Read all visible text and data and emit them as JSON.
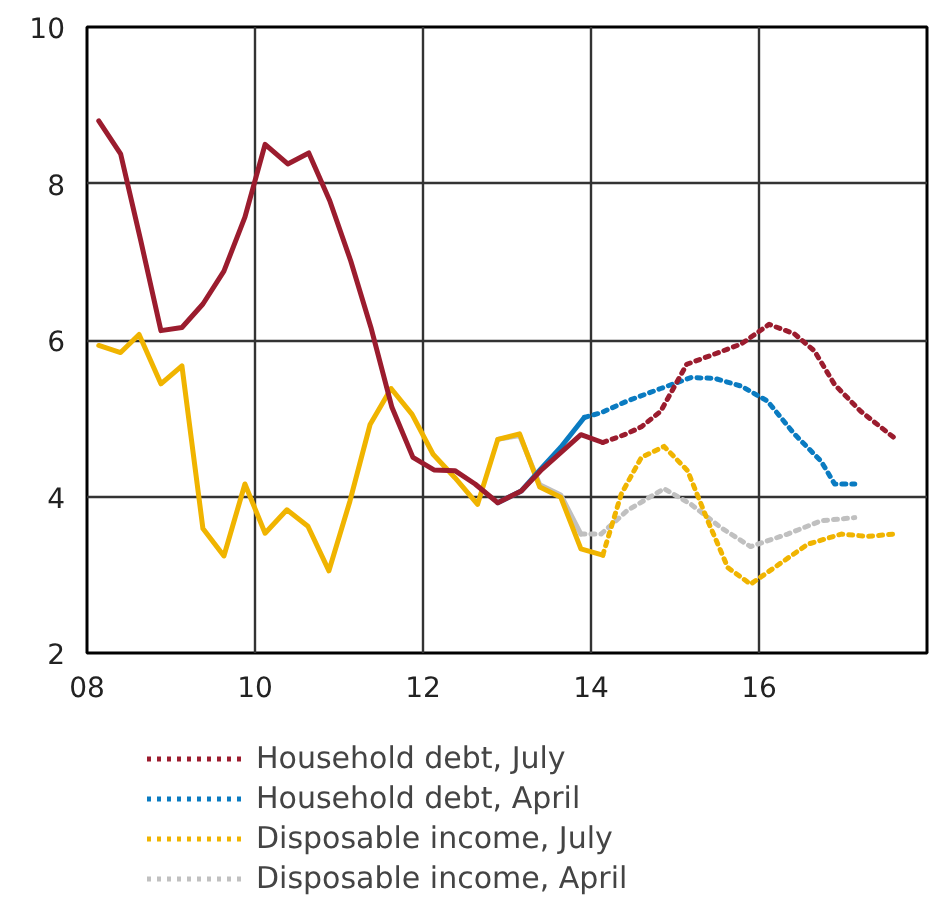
{
  "chart_data": {
    "type": "line",
    "xlim": [
      8,
      18
    ],
    "ylim": [
      2,
      10
    ],
    "xticks": [
      {
        "value": 8,
        "label": "08"
      },
      {
        "value": 10,
        "label": "10"
      },
      {
        "value": 12,
        "label": "12"
      },
      {
        "value": 14,
        "label": "14"
      },
      {
        "value": 16,
        "label": "16"
      }
    ],
    "yticks": [
      2,
      4,
      6,
      8,
      10
    ],
    "grid": true,
    "legend": "bottom",
    "series": [
      {
        "color": "#c0c0c0",
        "line_style": "solid",
        "x": [
          12.89,
          13.15,
          13.39,
          13.64,
          13.88
        ],
        "values": [
          4.73,
          4.78,
          4.15,
          4.02,
          3.52
        ]
      },
      {
        "name": "Disposable income, April",
        "color": "#c0c0c0",
        "line_style": "dotted",
        "x": [
          13.88,
          14.12,
          14.43,
          14.87,
          15.19,
          15.55,
          15.9,
          16.34,
          16.74,
          17.14
        ],
        "values": [
          3.52,
          3.52,
          3.82,
          4.1,
          3.9,
          3.6,
          3.36,
          3.52,
          3.69,
          3.73
        ]
      },
      {
        "color": "#f0b400",
        "line_style": "solid",
        "x": [
          8.14,
          8.4,
          8.62,
          8.88,
          9.13,
          9.38,
          9.63,
          9.88,
          10.12,
          10.38,
          10.63,
          10.88,
          11.13,
          11.37,
          11.62,
          11.87,
          12.12,
          12.38,
          12.65,
          12.89,
          13.15,
          13.39,
          13.64,
          13.88,
          14.14
        ],
        "values": [
          5.93,
          5.84,
          6.07,
          5.44,
          5.67,
          3.59,
          3.24,
          4.16,
          3.53,
          3.83,
          3.62,
          3.05,
          3.94,
          4.92,
          5.38,
          5.05,
          4.54,
          4.24,
          3.9,
          4.73,
          4.8,
          4.12,
          3.99,
          3.33,
          3.25
        ]
      },
      {
        "name": "Disposable income, July",
        "color": "#f0b400",
        "line_style": "dotted",
        "x": [
          14.14,
          14.36,
          14.6,
          14.87,
          15.15,
          15.39,
          15.63,
          15.9,
          16.18,
          16.58,
          16.98,
          17.29,
          17.61
        ],
        "values": [
          3.25,
          4.03,
          4.5,
          4.64,
          4.33,
          3.69,
          3.09,
          2.88,
          3.09,
          3.39,
          3.52,
          3.49,
          3.52
        ]
      },
      {
        "color": "#0a7bc1",
        "line_style": "solid",
        "x": [
          12.89,
          13.17,
          13.4,
          13.64,
          13.92
        ],
        "values": [
          3.92,
          4.07,
          4.35,
          4.63,
          5.01
        ]
      },
      {
        "name": "Household debt, April",
        "color": "#0a7bc1",
        "line_style": "dotted",
        "x": [
          13.92,
          14.12,
          14.43,
          14.83,
          15.19,
          15.47,
          15.79,
          16.1,
          16.42,
          16.74,
          16.9,
          17.14
        ],
        "values": [
          5.01,
          5.07,
          5.22,
          5.38,
          5.52,
          5.51,
          5.41,
          5.22,
          4.8,
          4.45,
          4.16,
          4.16
        ]
      },
      {
        "color": "#9b1c2e",
        "line_style": "solid",
        "x": [
          8.14,
          8.4,
          8.64,
          8.88,
          9.13,
          9.38,
          9.63,
          9.88,
          10.12,
          10.39,
          10.64,
          10.89,
          11.14,
          11.38,
          11.63,
          11.88,
          12.13,
          12.38,
          12.62,
          12.89,
          13.17,
          13.4,
          13.64,
          13.88,
          14.14
        ],
        "values": [
          8.8,
          8.38,
          7.27,
          6.12,
          6.16,
          6.46,
          6.88,
          7.57,
          8.5,
          8.25,
          8.39,
          7.78,
          7.01,
          6.16,
          5.14,
          4.5,
          4.34,
          4.33,
          4.16,
          3.92,
          4.07,
          4.33,
          4.56,
          4.79,
          4.69
        ]
      },
      {
        "name": "Household debt, July",
        "color": "#9b1c2e",
        "line_style": "dotted",
        "x": [
          14.14,
          14.4,
          14.6,
          14.83,
          15.14,
          15.47,
          15.79,
          16.12,
          16.42,
          16.66,
          16.9,
          17.21,
          17.61
        ],
        "values": [
          4.69,
          4.79,
          4.89,
          5.09,
          5.69,
          5.82,
          5.95,
          6.2,
          6.08,
          5.86,
          5.43,
          5.09,
          4.75
        ]
      }
    ]
  }
}
